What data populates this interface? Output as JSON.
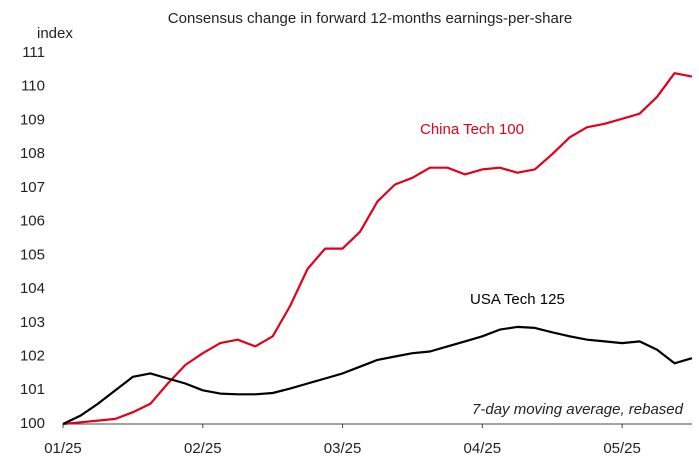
{
  "chart_data": {
    "type": "line",
    "title": "Consensus change in forward 12-months earnings-per-share",
    "y_label": "index",
    "annotation": "7-day moving average, rebased",
    "categories": [
      "01/25",
      null,
      null,
      null,
      null,
      null,
      null,
      null,
      "02/25",
      null,
      null,
      null,
      null,
      null,
      null,
      null,
      "03/25",
      null,
      null,
      null,
      null,
      null,
      null,
      null,
      "04/25",
      null,
      null,
      null,
      null,
      null,
      null,
      null,
      "05/25",
      null,
      null,
      null,
      null
    ],
    "series": [
      {
        "name": "China Tech 100",
        "color": "#e3001b",
        "values": [
          100,
          100.05,
          100.1,
          100.15,
          100.35,
          100.6,
          101.2,
          101.75,
          102.1,
          102.4,
          102.5,
          102.3,
          102.6,
          103.5,
          104.6,
          105.2,
          105.2,
          105.7,
          106.6,
          107.1,
          107.3,
          107.6,
          107.6,
          107.4,
          107.55,
          107.6,
          107.45,
          107.55,
          108.0,
          108.5,
          108.8,
          108.9,
          109.05,
          109.2,
          109.7,
          110.4,
          110.3
        ]
      },
      {
        "name": "USA Tech 125",
        "color": "#000000",
        "values": [
          100,
          100.25,
          100.6,
          101.0,
          101.4,
          101.5,
          101.35,
          101.2,
          101.0,
          100.9,
          100.88,
          100.88,
          100.92,
          101.05,
          101.2,
          101.35,
          101.5,
          101.7,
          101.9,
          102.0,
          102.1,
          102.15,
          102.3,
          102.45,
          102.6,
          102.8,
          102.88,
          102.85,
          102.72,
          102.6,
          102.5,
          102.45,
          102.4,
          102.45,
          102.2,
          101.8,
          101.95
        ]
      }
    ],
    "ylim": [
      100,
      111
    ],
    "yticks": [
      100,
      101,
      102,
      103,
      104,
      105,
      106,
      107,
      108,
      109,
      110,
      111
    ],
    "grid": false
  }
}
